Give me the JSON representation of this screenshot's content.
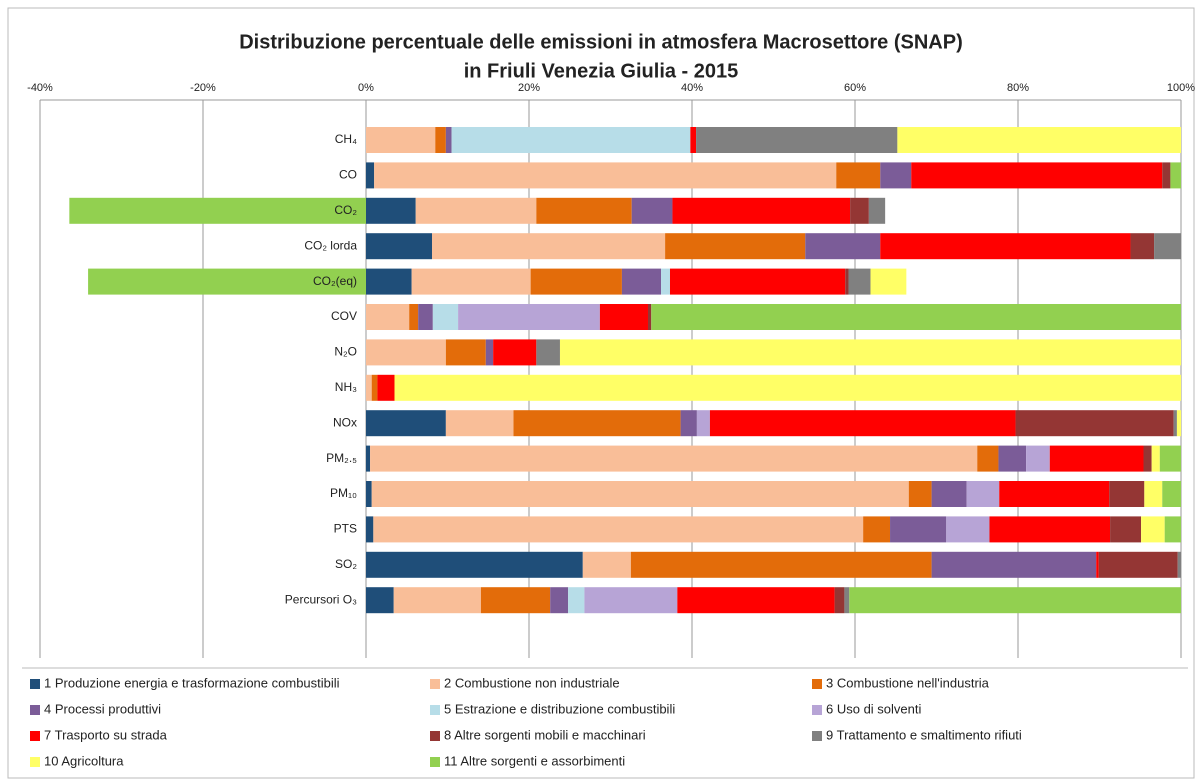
{
  "chart_data": {
    "type": "stacked_barh",
    "title_lines": [
      "Distribuzione percentuale delle emissioni in atmosfera Macrosettore (SNAP)",
      "in Friuli Venezia Giulia - 2015"
    ],
    "categories": [
      "CH₄",
      "CO",
      "CO₂",
      "CO₂ lorda",
      "CO₂(eq)",
      "COV",
      "N₂O",
      "NH₃",
      "NOx",
      "PM₂.₅",
      "PM₁₀",
      "PTS",
      "SO₂",
      "Percursori O₃"
    ],
    "series": [
      {
        "name": "1 Produzione energia e trasformazione combustibili",
        "color": "#1f4e79",
        "values": [
          0,
          1.0,
          6.1,
          8.1,
          5.6,
          0,
          0,
          0,
          9.8,
          0.5,
          0.7,
          0.9,
          26.6,
          3.4
        ]
      },
      {
        "name": "2 Combustione non industriale",
        "color": "#f9be98",
        "values": [
          8.5,
          56.7,
          14.8,
          28.6,
          14.6,
          5.3,
          9.8,
          0.7,
          8.3,
          74.5,
          65.9,
          60.1,
          5.9,
          10.7
        ]
      },
      {
        "name": "3 Combustione nell'industria",
        "color": "#e36c0a",
        "values": [
          1.3,
          5.4,
          11.7,
          17.2,
          11.2,
          1.1,
          4.9,
          0.7,
          20.5,
          2.6,
          2.8,
          3.3,
          36.9,
          8.5
        ]
      },
      {
        "name": "4 Processi produttivi",
        "color": "#7b5c98",
        "values": [
          0.7,
          3.8,
          5.0,
          9.2,
          4.8,
          1.8,
          0.9,
          0,
          2.0,
          3.4,
          4.3,
          6.9,
          20.2,
          2.2
        ]
      },
      {
        "name": "5 Estrazione e distribuzione combustibili",
        "color": "#b7dde8",
        "values": [
          29.3,
          0,
          0,
          0,
          1.1,
          3.1,
          0,
          0,
          0,
          0,
          0,
          0,
          0,
          2.0
        ]
      },
      {
        "name": "6 Uso di solventi",
        "color": "#b7a4d6",
        "values": [
          0,
          0,
          0,
          0,
          0,
          17.4,
          0,
          0,
          1.6,
          2.9,
          4.0,
          5.3,
          0,
          11.4
        ]
      },
      {
        "name": "7 Trasporto su strada",
        "color": "#ff0000",
        "values": [
          0.7,
          30.8,
          21.8,
          30.7,
          21.5,
          5.9,
          5.3,
          2.1,
          37.5,
          11.5,
          13.5,
          14.8,
          0.3,
          19.3
        ]
      },
      {
        "name": "8 Altre sorgenti mobili e macchinari",
        "color": "#943634",
        "values": [
          0,
          1.0,
          2.3,
          2.9,
          0.4,
          0.4,
          0,
          0,
          19.4,
          1.0,
          4.3,
          3.8,
          9.7,
          1.2
        ]
      },
      {
        "name": "9 Trattamento e smaltimento rifiuti",
        "color": "#808080",
        "values": [
          24.7,
          0,
          2.0,
          3.3,
          2.7,
          0,
          2.9,
          0,
          0.4,
          0,
          0,
          0,
          0.4,
          0.6
        ]
      },
      {
        "name": "10 Agricoltura",
        "color": "#ffff66",
        "values": [
          34.8,
          0,
          0,
          0,
          4.4,
          0,
          76.2,
          96.5,
          0.5,
          1.0,
          2.2,
          2.9,
          0,
          0
        ]
      },
      {
        "name": "11 Altre sorgenti e assorbimenti",
        "color": "#92d050",
        "values": [
          0,
          1.3,
          -36.4,
          0,
          -34.1,
          65.0,
          0,
          0,
          0,
          2.6,
          2.3,
          2.0,
          0,
          40.7
        ]
      }
    ],
    "xlim": [
      -40,
      100
    ],
    "xticks": [
      {
        "value": -40,
        "label": "-40%"
      },
      {
        "value": -20,
        "label": "-20%"
      },
      {
        "value": 0,
        "label": "0%"
      },
      {
        "value": 20,
        "label": "20%"
      },
      {
        "value": 40,
        "label": "40%"
      },
      {
        "value": 60,
        "label": "60%"
      },
      {
        "value": 80,
        "label": "80%"
      },
      {
        "value": 100,
        "label": "100%"
      }
    ],
    "grid": true
  }
}
